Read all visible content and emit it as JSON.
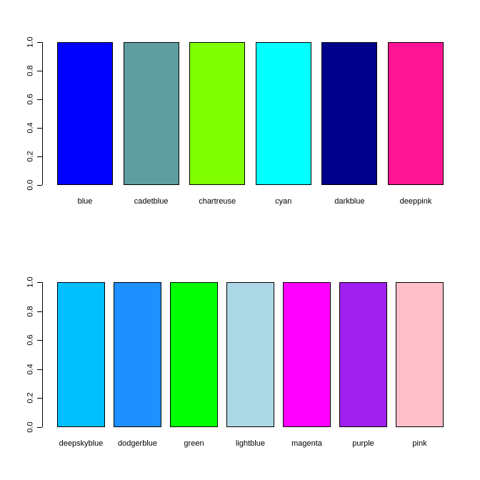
{
  "figure": {
    "background": "#ffffff",
    "axis_color": "#000000",
    "text_color": "#000000"
  },
  "chart_data": [
    {
      "type": "bar",
      "title": "",
      "xlabel": "",
      "ylabel": "",
      "categories": [
        "blue",
        "cadetblue",
        "chartreuse",
        "cyan",
        "darkblue",
        "deeppink"
      ],
      "values": [
        1.0,
        1.0,
        1.0,
        1.0,
        1.0,
        1.0
      ],
      "colors": [
        "#0000FF",
        "#5F9EA0",
        "#7FFF00",
        "#00FFFF",
        "#00008B",
        "#FF1493"
      ],
      "bar_border_color": "#000000",
      "y_ticks": [
        "0.0",
        "0.2",
        "0.4",
        "0.6",
        "0.8",
        "1.0"
      ],
      "ylim": [
        0,
        1
      ],
      "grid": false,
      "legend": null
    },
    {
      "type": "bar",
      "title": "",
      "xlabel": "",
      "ylabel": "",
      "categories": [
        "deepskyblue",
        "dodgerblue",
        "green",
        "lightblue",
        "magenta",
        "purple",
        "pink"
      ],
      "values": [
        1.0,
        1.0,
        1.0,
        1.0,
        1.0,
        1.0,
        1.0
      ],
      "colors": [
        "#00BFFF",
        "#1E90FF",
        "#00FF00",
        "#ADD8E6",
        "#FF00FF",
        "#A020F0",
        "#FFC0CB"
      ],
      "bar_border_color": "#000000",
      "y_ticks": [
        "0.0",
        "0.2",
        "0.4",
        "0.6",
        "0.8",
        "1.0"
      ],
      "ylim": [
        0,
        1
      ],
      "grid": false,
      "legend": null
    }
  ]
}
